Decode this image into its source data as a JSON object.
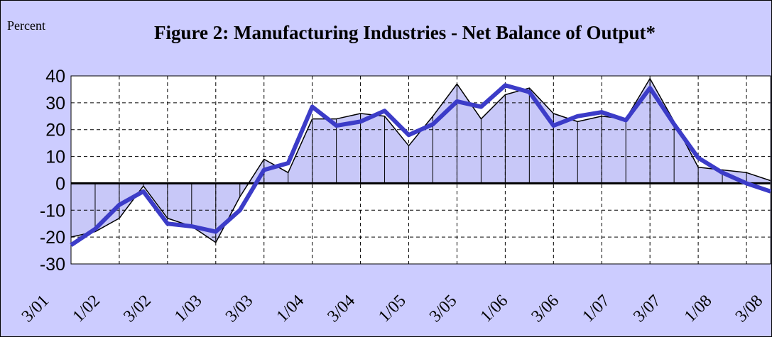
{
  "chart_data": {
    "type": "line",
    "title": "Figure 2: Manufacturing Industries - Net Balance of Output*",
    "y_label": "Percent",
    "categories": [
      "3/01",
      null,
      "1/02",
      null,
      "3/02",
      null,
      "1/03",
      null,
      "3/03",
      null,
      "1/04",
      null,
      "3/04",
      null,
      "1/05",
      null,
      "3/05",
      null,
      "1/06",
      null,
      "3/06",
      null,
      "1/07",
      null,
      "3/07",
      null,
      "1/08",
      null,
      "3/08",
      null
    ],
    "series": [
      {
        "type": "area",
        "color": "#000000",
        "fill": "#c8c8f8",
        "values": [
          -20,
          -18,
          -13,
          -1,
          -13,
          -16,
          -22,
          -5,
          9,
          4,
          24,
          24,
          26,
          25,
          14,
          25,
          37,
          24,
          33,
          35.5,
          26,
          23,
          25,
          24,
          39,
          23,
          6,
          5,
          4,
          1
        ]
      },
      {
        "type": "line",
        "color": "#3c3cc8",
        "values": [
          -23,
          -17,
          -8,
          -3,
          -15,
          -16,
          -18,
          -10,
          5,
          7.5,
          28.5,
          21.5,
          23,
          27,
          18,
          22,
          30.5,
          28.5,
          36.5,
          34,
          21.5,
          25,
          26.5,
          23.5,
          35.5,
          22,
          9.5,
          4,
          0,
          -3
        ]
      }
    ],
    "ylim": [
      -30,
      40
    ],
    "yticks": [
      -30,
      -20,
      -10,
      0,
      10,
      20,
      30,
      40
    ],
    "grid": true
  }
}
